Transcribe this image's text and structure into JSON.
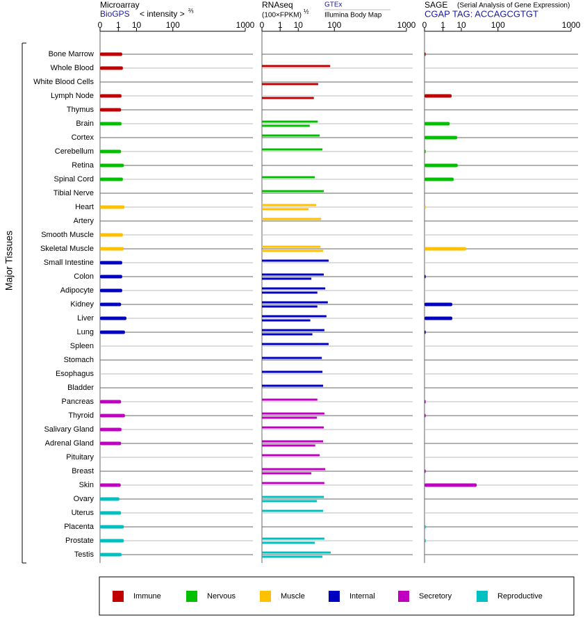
{
  "chart_data": {
    "type": "bar",
    "y_axis_label": "Major Tissues",
    "categories": [
      "Bone Marrow",
      "Whole Blood",
      "White Blood Cells",
      "Lymph Node",
      "Thymus",
      "Brain",
      "Cortex",
      "Cerebellum",
      "Retina",
      "Spinal Cord",
      "Tibial Nerve",
      "Heart",
      "Artery",
      "Smooth Muscle",
      "Skeletal Muscle",
      "Small Intestine",
      "Colon",
      "Adipocyte",
      "Kidney",
      "Liver",
      "Lung",
      "Spleen",
      "Stomach",
      "Esophagus",
      "Bladder",
      "Pancreas",
      "Thyroid",
      "Salivary Gland",
      "Adrenal Gland",
      "Pituitary",
      "Breast",
      "Skin",
      "Ovary",
      "Uterus",
      "Placenta",
      "Prostate",
      "Testis"
    ],
    "category_colors": [
      "#c00000",
      "#c00000",
      "#c00000",
      "#c00000",
      "#c00000",
      "#00c000",
      "#00c000",
      "#00c000",
      "#00c000",
      "#00c000",
      "#00c000",
      "#ffc000",
      "#ffc000",
      "#ffc000",
      "#ffc000",
      "#0000c0",
      "#0000c0",
      "#0000c0",
      "#0000c0",
      "#0000c0",
      "#0000c0",
      "#0000c0",
      "#0000c0",
      "#0000c0",
      "#0000c0",
      "#c000c0",
      "#c000c0",
      "#c000c0",
      "#c000c0",
      "#c000c0",
      "#c000c0",
      "#c000c0",
      "#00c0c0",
      "#00c0c0",
      "#00c0c0",
      "#00c0c0",
      "#00c0c0"
    ],
    "legend": [
      {
        "name": "Immune",
        "color": "#c00000"
      },
      {
        "name": "Nervous",
        "color": "#00c000"
      },
      {
        "name": "Muscle",
        "color": "#ffc000"
      },
      {
        "name": "Internal",
        "color": "#0000c0"
      },
      {
        "name": "Secretory",
        "color": "#c000c0"
      },
      {
        "name": "Reproductive",
        "color": "#00c0c0"
      }
    ],
    "panels": [
      {
        "title": "Microarray",
        "axis_label": "< intensity >",
        "axis_label_exponent": "⅔",
        "xlim": [
          0,
          1000
        ],
        "xticks": [
          0,
          1,
          10,
          100,
          1000
        ],
        "series": [
          {
            "name": "BioGPS",
            "values": [
              1.9,
              2.1,
              null,
              1.7,
              1.6,
              1.7,
              null,
              1.6,
              2.4,
              2.1,
              null,
              2.6,
              null,
              2.1,
              2.4,
              1.9,
              1.9,
              1.9,
              1.6,
              3.4,
              2.8,
              null,
              null,
              null,
              null,
              1.6,
              2.8,
              1.7,
              1.6,
              null,
              null,
              1.5,
              1.2,
              1.6,
              2.4,
              2.4,
              1.7
            ]
          }
        ]
      },
      {
        "title": "RNAseq",
        "axis_label": "(100×FPKM)",
        "axis_label_exponent": "½",
        "xlim": [
          0,
          1000
        ],
        "xticks": [
          0,
          1,
          10,
          100,
          1000
        ],
        "series": [
          {
            "name": "GTEx",
            "values": [
              null,
              82,
              null,
              null,
              null,
              42,
              47,
              55,
              null,
              35,
              59,
              38,
              51,
              null,
              49,
              76,
              59,
              64,
              73,
              68,
              61,
              76,
              53,
              55,
              57,
              41,
              61,
              59,
              57,
              47,
              64,
              61,
              59,
              57,
              null,
              61,
              84
            ]
          },
          {
            "name": "Illumina Body Map",
            "values": [
              null,
              null,
              43,
              33,
              null,
              25,
              null,
              null,
              null,
              null,
              null,
              23,
              null,
              null,
              57,
              null,
              28,
              41,
              41,
              26,
              30,
              null,
              null,
              null,
              null,
              null,
              40,
              null,
              36,
              null,
              28,
              null,
              40,
              null,
              null,
              35,
              55
            ]
          }
        ]
      },
      {
        "title": "SAGE",
        "subtitle": "(Serial Analysis of Gene Expression)",
        "xlim": [
          0,
          1000
        ],
        "xticks": [
          0,
          1,
          10,
          100,
          1000
        ],
        "series": [
          {
            "name": "CGAP TAG: ACCAGCGTGT",
            "values": [
              0.0001,
              null,
              null,
              3.6,
              null,
              2.8,
              6.7,
              0.0001,
              7.1,
              4.6,
              null,
              0.0001,
              null,
              null,
              15,
              null,
              0.0001,
              null,
              3.9,
              3.9,
              0.0001,
              null,
              null,
              null,
              null,
              0.0001,
              0.0001,
              null,
              null,
              null,
              0.0001,
              32,
              null,
              null,
              0.0001,
              0.0001,
              null
            ]
          }
        ]
      }
    ]
  }
}
